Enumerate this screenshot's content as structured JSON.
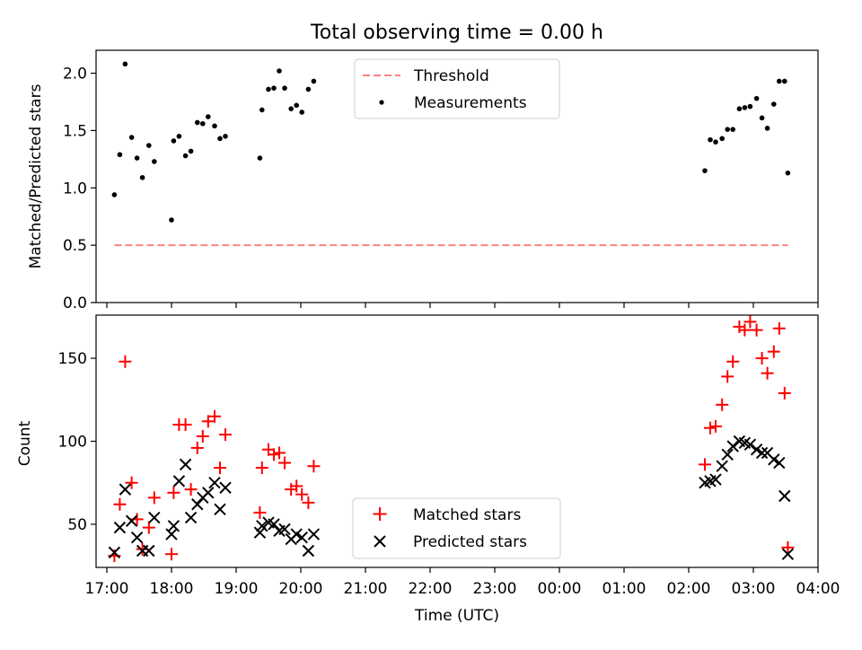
{
  "title": "Total observing time = 0.00 h",
  "chart_data": [
    {
      "type": "scatter",
      "ylabel": "Matched/Predicted stars",
      "ylim": [
        0.0,
        2.2
      ],
      "yticks": [
        0.0,
        0.5,
        1.0,
        1.5,
        2.0
      ],
      "ytick_labels": [
        "0.0",
        "0.5",
        "1.0",
        "1.5",
        "2.0"
      ],
      "legend_position": "upper-center",
      "legend": [
        {
          "label": "Threshold",
          "style": "dashed-line",
          "color": "#ff8080"
        },
        {
          "label": "Measurements",
          "style": "dot",
          "color": "#000000"
        }
      ],
      "threshold": {
        "y": 0.5,
        "x_start": "17:07",
        "x_end": "03:32",
        "color": "#ff8080"
      },
      "series": [
        {
          "name": "Measurements",
          "color": "#000000",
          "points": [
            [
              "17:07",
              0.94
            ],
            [
              "17:12",
              1.29
            ],
            [
              "17:17",
              2.08
            ],
            [
              "17:23",
              1.44
            ],
            [
              "17:28",
              1.26
            ],
            [
              "17:33",
              1.09
            ],
            [
              "17:39",
              1.37
            ],
            [
              "17:44",
              1.23
            ],
            [
              "18:00",
              0.72
            ],
            [
              "18:02",
              1.41
            ],
            [
              "18:07",
              1.45
            ],
            [
              "18:13",
              1.28
            ],
            [
              "18:18",
              1.32
            ],
            [
              "18:24",
              1.57
            ],
            [
              "18:29",
              1.56
            ],
            [
              "18:34",
              1.62
            ],
            [
              "18:40",
              1.54
            ],
            [
              "18:45",
              1.43
            ],
            [
              "18:50",
              1.45
            ],
            [
              "19:22",
              1.26
            ],
            [
              "19:24",
              1.68
            ],
            [
              "19:30",
              1.86
            ],
            [
              "19:35",
              1.87
            ],
            [
              "19:40",
              2.02
            ],
            [
              "19:45",
              1.87
            ],
            [
              "19:51",
              1.69
            ],
            [
              "19:56",
              1.72
            ],
            [
              "20:01",
              1.66
            ],
            [
              "20:07",
              1.86
            ],
            [
              "20:12",
              1.93
            ],
            [
              "02:15",
              1.15
            ],
            [
              "02:20",
              1.42
            ],
            [
              "02:25",
              1.4
            ],
            [
              "02:31",
              1.43
            ],
            [
              "02:36",
              1.51
            ],
            [
              "02:41",
              1.51
            ],
            [
              "02:47",
              1.69
            ],
            [
              "02:52",
              1.7
            ],
            [
              "02:57",
              1.71
            ],
            [
              "03:03",
              1.78
            ],
            [
              "03:08",
              1.61
            ],
            [
              "03:13",
              1.52
            ],
            [
              "03:19",
              1.73
            ],
            [
              "03:24",
              1.93
            ],
            [
              "03:29",
              1.93
            ],
            [
              "03:32",
              1.13
            ]
          ]
        }
      ]
    },
    {
      "type": "scatter",
      "ylabel": "Count",
      "xlabel": "Time (UTC)",
      "ylim": [
        24,
        176
      ],
      "yticks": [
        50,
        100,
        150
      ],
      "ytick_labels": [
        "50",
        "100",
        "150"
      ],
      "x_range": [
        "16:50",
        "04:00"
      ],
      "xticks": [
        "17:00",
        "18:00",
        "19:00",
        "20:00",
        "21:00",
        "22:00",
        "23:00",
        "00:00",
        "01:00",
        "02:00",
        "03:00",
        "04:00"
      ],
      "legend_position": "lower-center",
      "legend": [
        {
          "label": "Matched stars",
          "marker": "+",
          "color": "#ff0000"
        },
        {
          "label": "Predicted stars",
          "marker": "x",
          "color": "#000000"
        }
      ],
      "series": [
        {
          "name": "Matched stars",
          "marker": "+",
          "color": "#ff0000",
          "points": [
            [
              "17:07",
              31
            ],
            [
              "17:12",
              62
            ],
            [
              "17:17",
              148
            ],
            [
              "17:23",
              75
            ],
            [
              "17:28",
              53
            ],
            [
              "17:33",
              35
            ],
            [
              "17:39",
              48
            ],
            [
              "17:44",
              66
            ],
            [
              "18:00",
              32
            ],
            [
              "18:02",
              69
            ],
            [
              "18:07",
              110
            ],
            [
              "18:13",
              110
            ],
            [
              "18:18",
              71
            ],
            [
              "18:24",
              96
            ],
            [
              "18:29",
              103
            ],
            [
              "18:34",
              112
            ],
            [
              "18:40",
              115
            ],
            [
              "18:45",
              84
            ],
            [
              "18:50",
              104
            ],
            [
              "19:22",
              57
            ],
            [
              "19:24",
              84
            ],
            [
              "19:30",
              95
            ],
            [
              "19:35",
              92
            ],
            [
              "19:40",
              93
            ],
            [
              "19:45",
              87
            ],
            [
              "19:51",
              71
            ],
            [
              "19:56",
              73
            ],
            [
              "20:01",
              68
            ],
            [
              "20:07",
              63
            ],
            [
              "20:12",
              85
            ],
            [
              "02:15",
              86
            ],
            [
              "02:20",
              108
            ],
            [
              "02:25",
              109
            ],
            [
              "02:31",
              122
            ],
            [
              "02:36",
              139
            ],
            [
              "02:41",
              148
            ],
            [
              "02:47",
              169
            ],
            [
              "02:52",
              167
            ],
            [
              "02:57",
              172
            ],
            [
              "03:03",
              167
            ],
            [
              "03:08",
              150
            ],
            [
              "03:13",
              141
            ],
            [
              "03:19",
              154
            ],
            [
              "03:24",
              168
            ],
            [
              "03:29",
              129
            ],
            [
              "03:32",
              36
            ]
          ]
        },
        {
          "name": "Predicted stars",
          "marker": "x",
          "color": "#000000",
          "points": [
            [
              "17:07",
              33
            ],
            [
              "17:12",
              48
            ],
            [
              "17:17",
              71
            ],
            [
              "17:23",
              52
            ],
            [
              "17:28",
              42
            ],
            [
              "17:33",
              34
            ],
            [
              "17:39",
              34
            ],
            [
              "17:44",
              54
            ],
            [
              "18:00",
              44
            ],
            [
              "18:02",
              49
            ],
            [
              "18:07",
              76
            ],
            [
              "18:13",
              86
            ],
            [
              "18:18",
              54
            ],
            [
              "18:24",
              62
            ],
            [
              "18:29",
              66
            ],
            [
              "18:34",
              69
            ],
            [
              "18:40",
              75
            ],
            [
              "18:45",
              59
            ],
            [
              "18:50",
              72
            ],
            [
              "19:22",
              45
            ],
            [
              "19:24",
              49
            ],
            [
              "19:30",
              51
            ],
            [
              "19:35",
              50
            ],
            [
              "19:40",
              46
            ],
            [
              "19:45",
              47
            ],
            [
              "19:51",
              41
            ],
            [
              "19:56",
              44
            ],
            [
              "20:01",
              42
            ],
            [
              "20:07",
              34
            ],
            [
              "20:12",
              44
            ],
            [
              "02:15",
              75
            ],
            [
              "02:20",
              76
            ],
            [
              "02:25",
              77
            ],
            [
              "02:31",
              85
            ],
            [
              "02:36",
              92
            ],
            [
              "02:41",
              97
            ],
            [
              "02:47",
              100
            ],
            [
              "02:52",
              99
            ],
            [
              "02:57",
              98
            ],
            [
              "03:03",
              95
            ],
            [
              "03:08",
              93
            ],
            [
              "03:13",
              93
            ],
            [
              "03:19",
              89
            ],
            [
              "03:24",
              87
            ],
            [
              "03:29",
              67
            ],
            [
              "03:32",
              32
            ]
          ]
        }
      ]
    }
  ]
}
